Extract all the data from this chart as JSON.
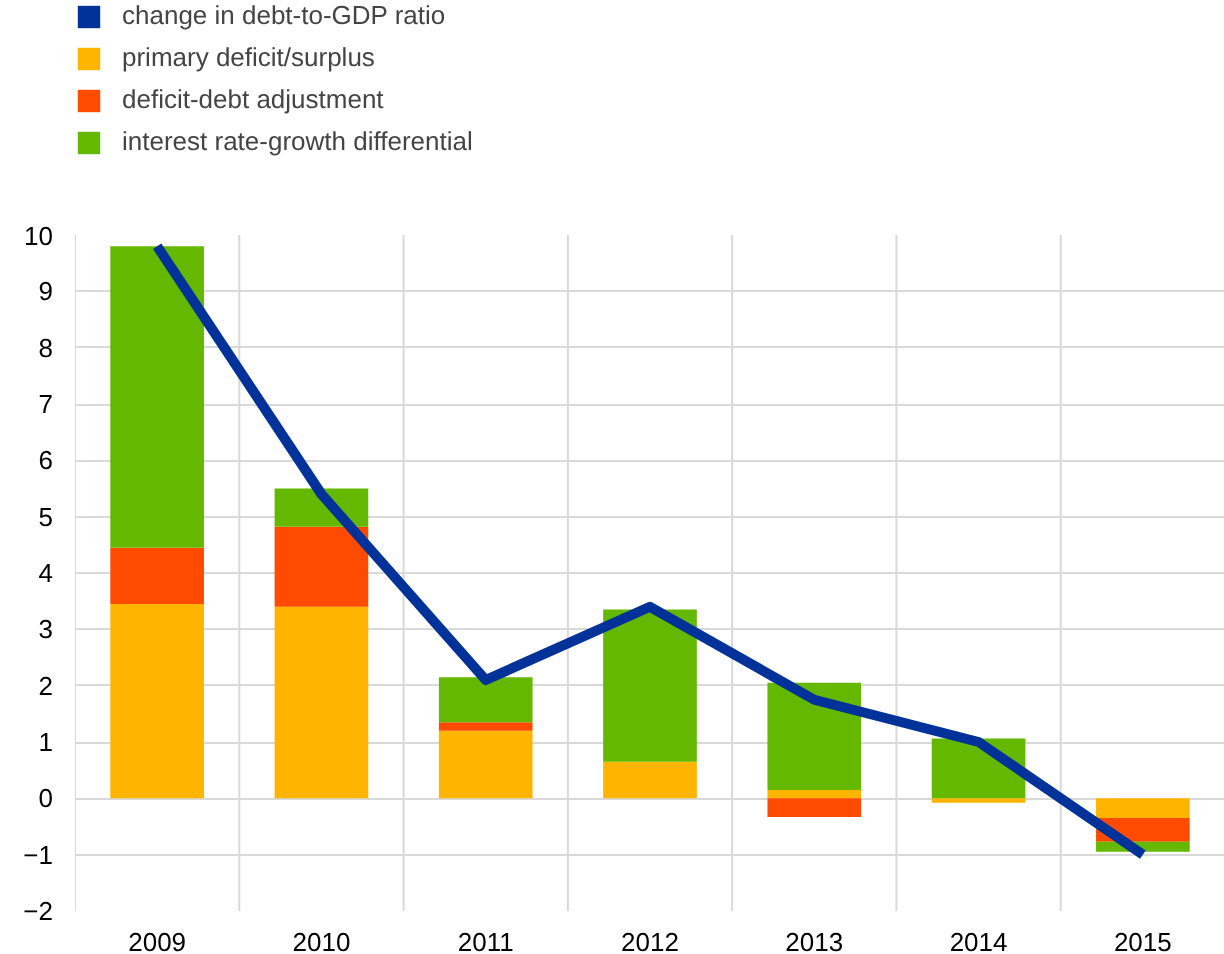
{
  "chart_data": {
    "type": "bar",
    "stacked": true,
    "categories": [
      "2009",
      "2010",
      "2011",
      "2012",
      "2013",
      "2014",
      "2015"
    ],
    "series": [
      {
        "name": "change in debt-to-GDP ratio",
        "type": "line",
        "color": "#003299",
        "values": [
          9.8,
          5.4,
          2.1,
          3.4,
          1.75,
          1.0,
          -1.0
        ]
      },
      {
        "name": "primary deficit/surplus",
        "color": "#ffb400",
        "values": [
          3.45,
          3.4,
          1.2,
          0.65,
          0.15,
          -0.08,
          -0.35
        ]
      },
      {
        "name": "deficit-debt adjustment",
        "color": "#ff4b00",
        "values": [
          1.0,
          1.42,
          0.15,
          null,
          -0.33,
          null,
          -0.42
        ]
      },
      {
        "name": "interest rate-growth differential",
        "color": "#65b800",
        "values": [
          5.35,
          0.68,
          0.8,
          2.7,
          1.9,
          1.06,
          -0.18
        ]
      }
    ],
    "ylim": [
      -2,
      10
    ],
    "yticks": [
      -2,
      -1,
      0,
      1,
      2,
      3,
      4,
      5,
      6,
      7,
      8,
      9,
      10
    ],
    "grid": true,
    "legend": "top left"
  }
}
